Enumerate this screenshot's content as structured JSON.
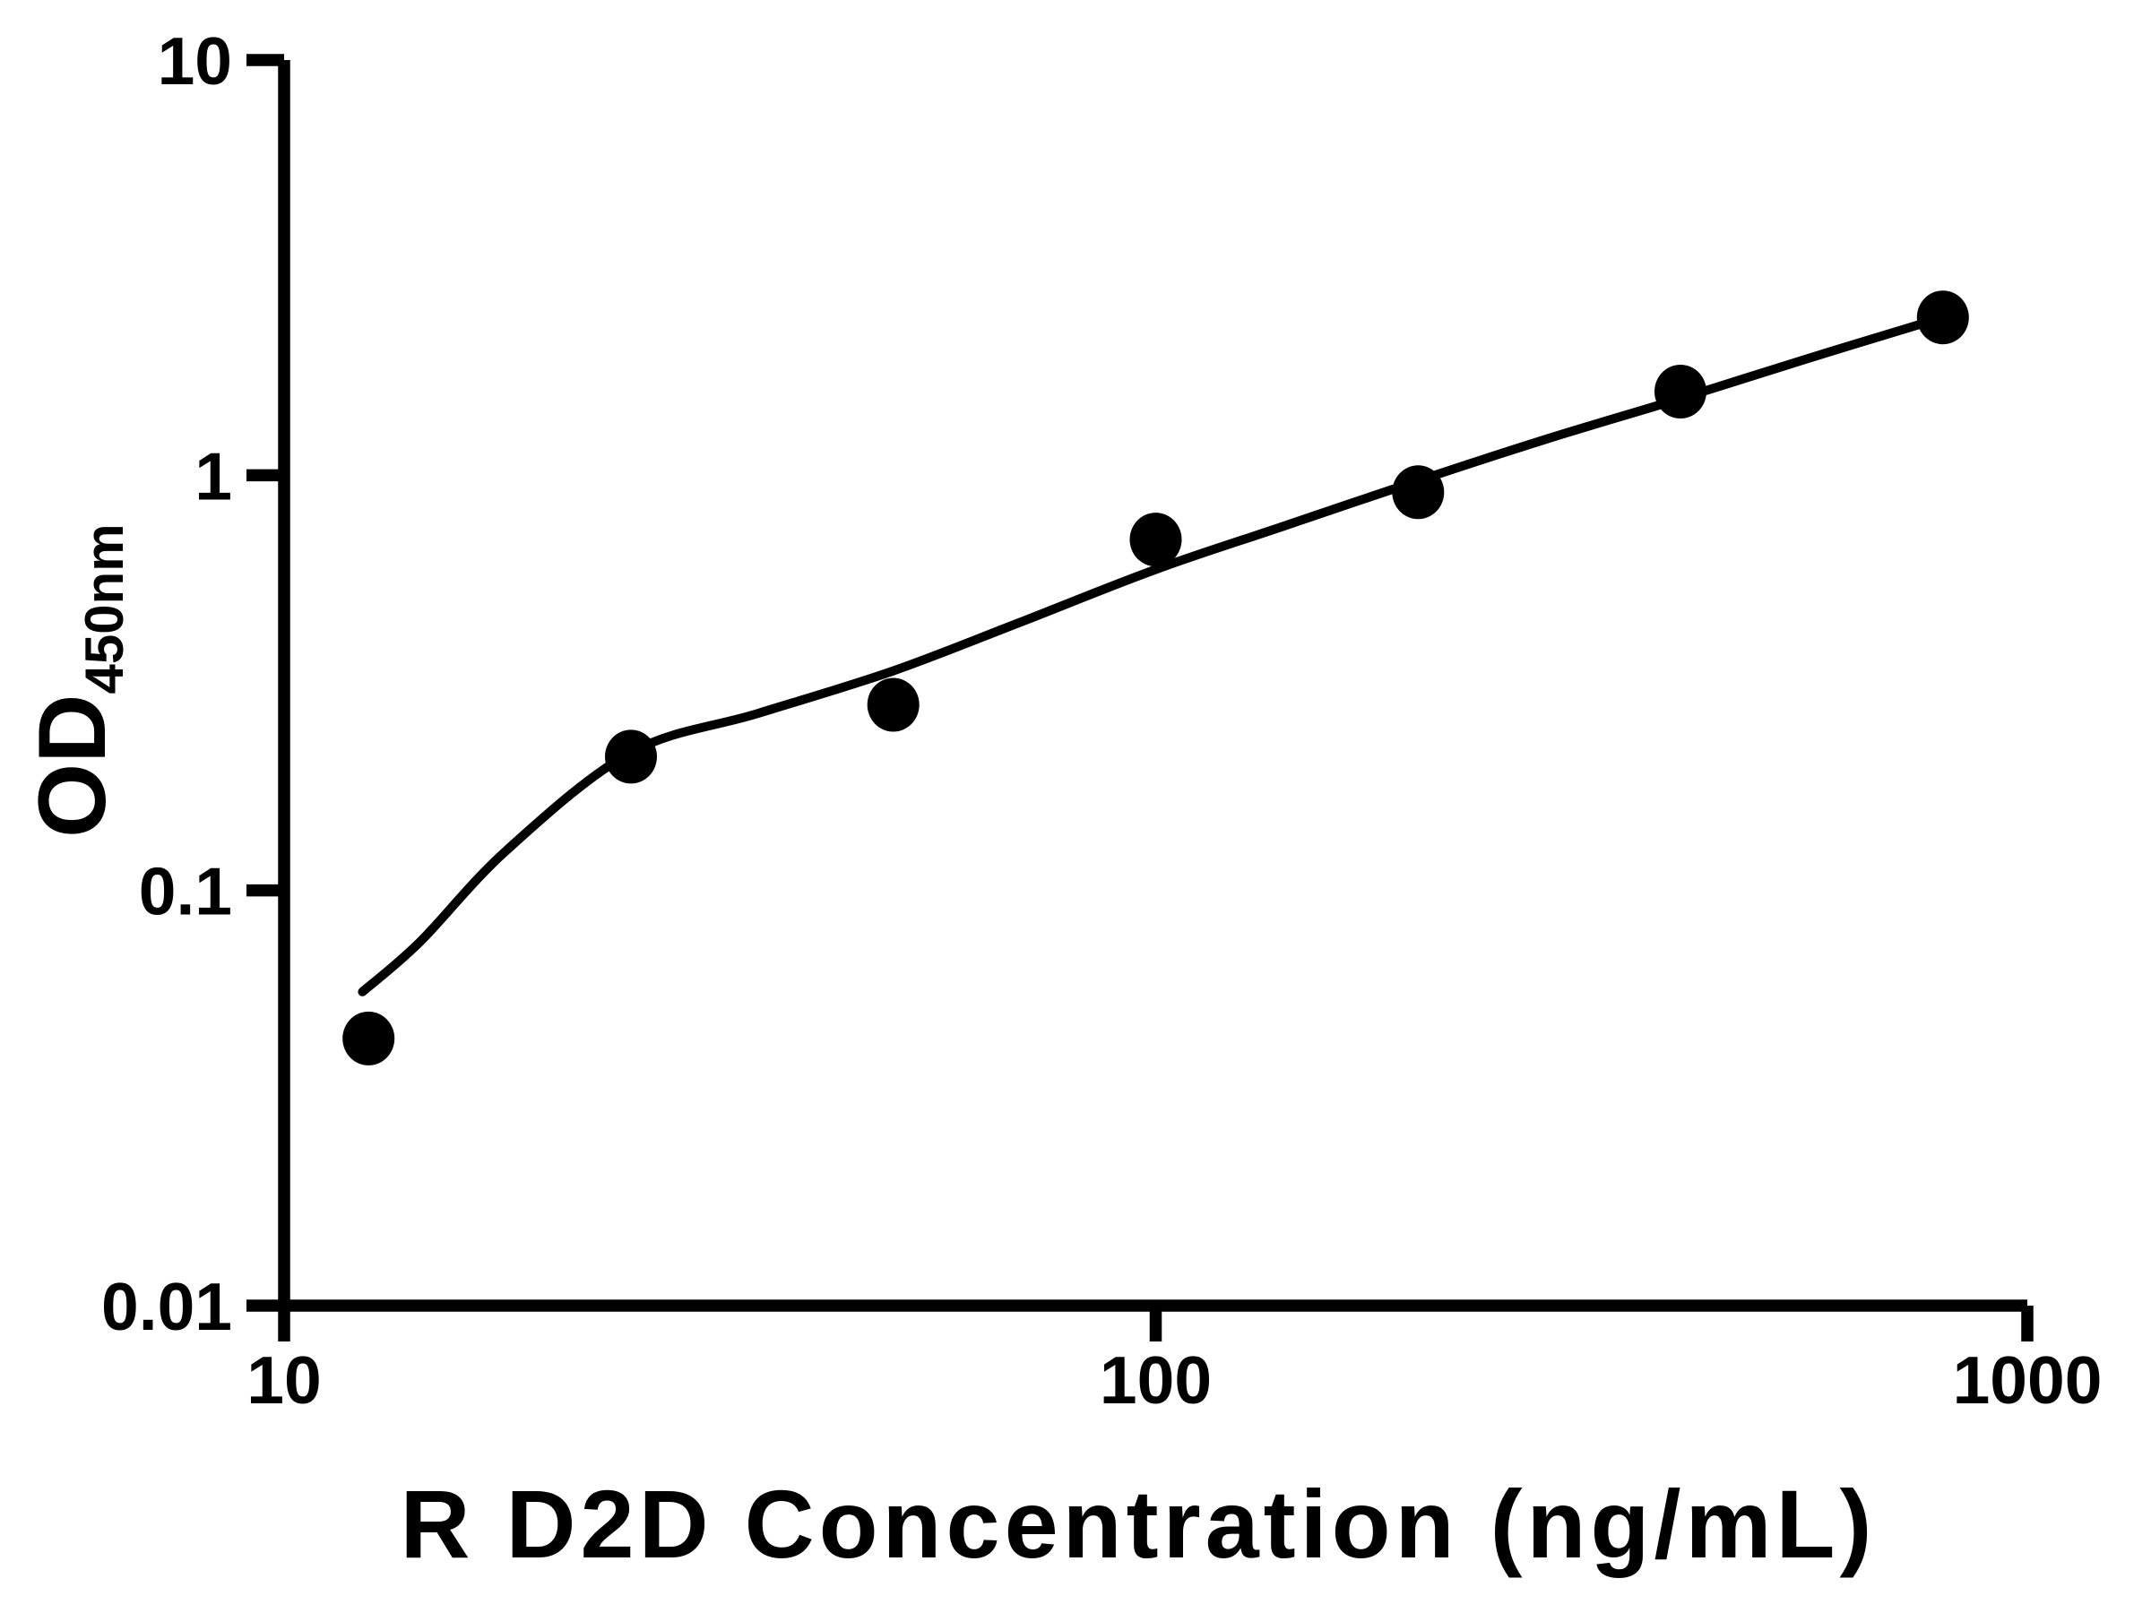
{
  "figure": {
    "background_color": "#ffffff",
    "ink_color": "#000000"
  },
  "chart_data": {
    "type": "scatter",
    "title": "",
    "xlabel": "R D2D Concentration (ng/mL)",
    "ylabel": "OD450nm",
    "ylabel_main": "OD",
    "ylabel_sub": "450nm",
    "x_scale": "log",
    "y_scale": "log",
    "xlim": [
      10,
      1000
    ],
    "ylim": [
      0.01,
      10
    ],
    "x_ticks": [
      10,
      100,
      1000
    ],
    "x_tick_labels": [
      "10",
      "100",
      "1000"
    ],
    "y_ticks": [
      10,
      1,
      0.1,
      0.01
    ],
    "y_tick_labels": [
      "10",
      "1",
      "0.1",
      "0.01"
    ],
    "grid": false,
    "legend": null,
    "marker_color": "#000000",
    "line_color": "#000000",
    "points": [
      {
        "x": 12.5,
        "od": 0.044
      },
      {
        "x": 25,
        "od": 0.21
      },
      {
        "x": 50,
        "od": 0.28
      },
      {
        "x": 100,
        "od": 0.7
      },
      {
        "x": 200,
        "od": 0.91
      },
      {
        "x": 400,
        "od": 1.59
      },
      {
        "x": 800,
        "od": 2.4
      }
    ],
    "fit_curve": [
      [
        12.3,
        0.057
      ],
      [
        14.3,
        0.075
      ],
      [
        18,
        0.125
      ],
      [
        25,
        0.215
      ],
      [
        35,
        0.267
      ],
      [
        50,
        0.338
      ],
      [
        70,
        0.443
      ],
      [
        100,
        0.593
      ],
      [
        140,
        0.753
      ],
      [
        200,
        0.97
      ],
      [
        280,
        1.22
      ],
      [
        400,
        1.53
      ],
      [
        560,
        1.91
      ],
      [
        800,
        2.4
      ]
    ]
  }
}
